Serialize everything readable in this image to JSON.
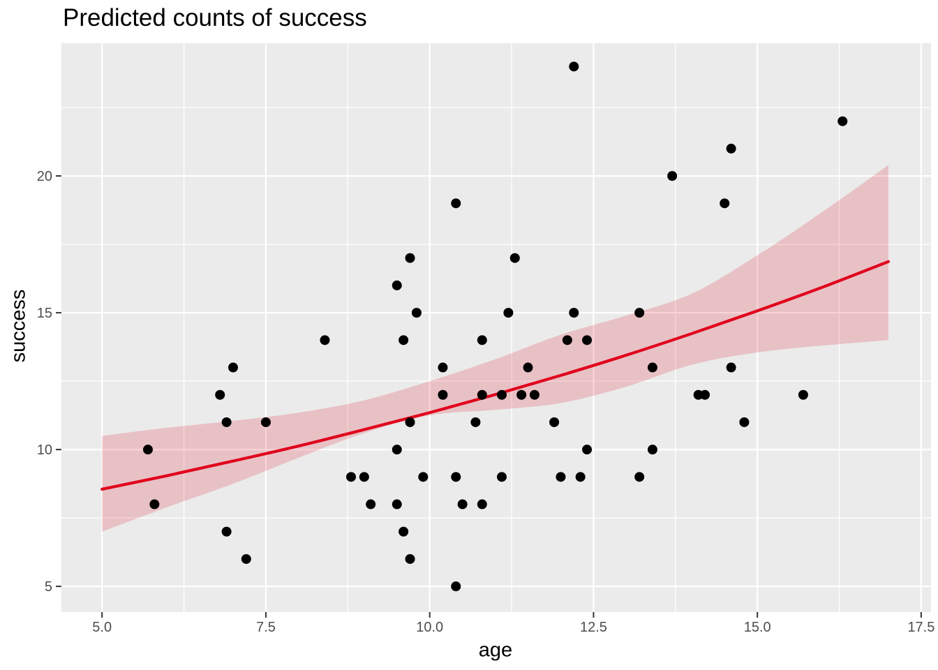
{
  "chart_data": {
    "type": "scatter",
    "title": "Predicted counts of success",
    "xlabel": "age",
    "ylabel": "success",
    "xlim": [
      4.38,
      17.65
    ],
    "ylim": [
      4.06,
      24.85
    ],
    "grid": true,
    "legend": false,
    "x_ticks": [
      5.0,
      7.5,
      10.0,
      12.5,
      15.0,
      17.5
    ],
    "x_tick_labels": [
      "5.0",
      "7.5",
      "10.0",
      "12.5",
      "15.0",
      "17.5"
    ],
    "x_minor_ticks": [
      6.25,
      8.75,
      11.25,
      13.75,
      16.25
    ],
    "y_ticks": [
      5,
      10,
      15,
      20
    ],
    "y_tick_labels": [
      "5",
      "10",
      "15",
      "20"
    ],
    "y_minor_ticks": [
      7.5,
      12.5,
      17.5,
      22.5
    ],
    "points": [
      [
        5.7,
        10
      ],
      [
        5.8,
        8
      ],
      [
        6.8,
        12
      ],
      [
        6.9,
        11
      ],
      [
        6.9,
        7
      ],
      [
        7.0,
        13
      ],
      [
        7.2,
        6
      ],
      [
        7.5,
        11
      ],
      [
        8.4,
        14
      ],
      [
        8.8,
        9
      ],
      [
        9.0,
        9
      ],
      [
        9.1,
        8
      ],
      [
        9.5,
        16
      ],
      [
        9.5,
        10
      ],
      [
        9.5,
        8
      ],
      [
        9.6,
        14
      ],
      [
        9.6,
        7
      ],
      [
        9.7,
        17
      ],
      [
        9.7,
        11
      ],
      [
        9.7,
        6
      ],
      [
        9.8,
        15
      ],
      [
        9.9,
        9
      ],
      [
        10.2,
        13
      ],
      [
        10.2,
        12
      ],
      [
        10.4,
        19
      ],
      [
        10.4,
        9
      ],
      [
        10.4,
        5
      ],
      [
        10.5,
        8
      ],
      [
        10.7,
        11
      ],
      [
        10.8,
        14
      ],
      [
        10.8,
        12
      ],
      [
        10.8,
        8
      ],
      [
        11.1,
        12
      ],
      [
        11.1,
        9
      ],
      [
        11.2,
        15
      ],
      [
        11.3,
        17
      ],
      [
        11.4,
        12
      ],
      [
        11.5,
        13
      ],
      [
        11.6,
        12
      ],
      [
        11.9,
        11
      ],
      [
        12.0,
        9
      ],
      [
        12.1,
        14
      ],
      [
        12.2,
        24
      ],
      [
        12.2,
        15
      ],
      [
        12.3,
        9
      ],
      [
        12.4,
        14
      ],
      [
        12.4,
        10
      ],
      [
        13.2,
        15
      ],
      [
        13.2,
        9
      ],
      [
        13.4,
        13
      ],
      [
        13.4,
        10
      ],
      [
        13.7,
        20
      ],
      [
        14.1,
        12
      ],
      [
        14.2,
        12
      ],
      [
        14.5,
        19
      ],
      [
        14.6,
        21
      ],
      [
        14.6,
        13
      ],
      [
        14.8,
        11
      ],
      [
        15.7,
        12
      ],
      [
        16.3,
        22
      ]
    ],
    "trend_line": {
      "name": "fitted curve",
      "x": [
        5,
        6,
        7,
        8,
        9,
        10,
        11,
        12,
        13,
        14,
        15,
        16,
        17
      ],
      "y": [
        8.55,
        9.05,
        9.58,
        10.13,
        10.73,
        11.35,
        12.01,
        12.71,
        13.45,
        14.24,
        15.07,
        15.94,
        16.87
      ]
    },
    "ribbon": {
      "name": "confidence band",
      "x": [
        5,
        6,
        7,
        8,
        9,
        10,
        11,
        12,
        13,
        14,
        15,
        16,
        17
      ],
      "upper": [
        10.5,
        10.8,
        11.05,
        11.35,
        11.8,
        12.5,
        13.3,
        14.2,
        14.9,
        15.7,
        17.1,
        18.7,
        20.4
      ],
      "lower": [
        7.0,
        7.9,
        8.75,
        9.7,
        10.6,
        11.25,
        11.45,
        11.7,
        12.3,
        13.1,
        13.55,
        13.8,
        14.0
      ]
    },
    "colors": {
      "background": "#FFFFFF",
      "panel": "#EBEBEB",
      "grid": "#FFFFFF",
      "point": "#000000",
      "line": "#E0041C",
      "ribbon": "rgba(224,4,28,0.18)",
      "tick_label": "#4D4D4D",
      "tick_mark": "#333333",
      "title_text": "#000000"
    }
  }
}
